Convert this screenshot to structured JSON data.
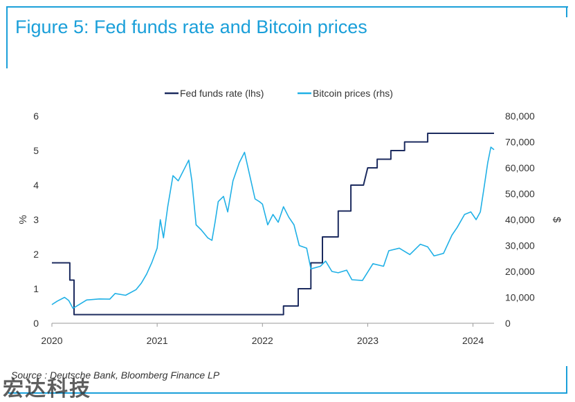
{
  "title": "Figure 5: Fed funds rate and Bitcoin prices",
  "source": "Source : Deutsche Bank, Bloomberg Finance LP",
  "watermark": "宏达科技",
  "colors": {
    "fed": "#1b2a5e",
    "btc": "#1fb0e6",
    "accent": "#1a9fd9"
  },
  "chart_data": {
    "type": "line",
    "legend": {
      "position": "top"
    },
    "x_ticks": [
      "2020",
      "2021",
      "2022",
      "2023",
      "2024"
    ],
    "xlim": [
      2020.0,
      2024.2
    ],
    "ylabel_left": "%",
    "ylabel_right": "$",
    "ylim_left": [
      0,
      6
    ],
    "yticks_left": [
      "0",
      "1",
      "2",
      "3",
      "4",
      "5",
      "6"
    ],
    "ylim_right": [
      0,
      80000
    ],
    "yticks_right": [
      "0",
      "10,000",
      "20,000",
      "30,000",
      "40,000",
      "50,000",
      "60,000",
      "70,000",
      "80,000"
    ],
    "grid": false,
    "series": [
      {
        "name": "Fed funds rate (lhs)",
        "axis": "left",
        "step": true,
        "points": [
          [
            2020.0,
            1.75
          ],
          [
            2020.17,
            1.75
          ],
          [
            2020.17,
            1.25
          ],
          [
            2020.21,
            1.25
          ],
          [
            2020.21,
            0.25
          ],
          [
            2022.2,
            0.25
          ],
          [
            2022.2,
            0.5
          ],
          [
            2022.34,
            0.5
          ],
          [
            2022.34,
            1.0
          ],
          [
            2022.46,
            1.0
          ],
          [
            2022.46,
            1.75
          ],
          [
            2022.57,
            1.75
          ],
          [
            2022.57,
            2.5
          ],
          [
            2022.72,
            2.5
          ],
          [
            2022.72,
            3.25
          ],
          [
            2022.84,
            3.25
          ],
          [
            2022.84,
            4.0
          ],
          [
            2022.96,
            4.0
          ],
          [
            2023.0,
            4.5
          ],
          [
            2023.09,
            4.5
          ],
          [
            2023.09,
            4.75
          ],
          [
            2023.22,
            4.75
          ],
          [
            2023.22,
            5.0
          ],
          [
            2023.35,
            5.0
          ],
          [
            2023.35,
            5.25
          ],
          [
            2023.57,
            5.25
          ],
          [
            2023.57,
            5.5
          ],
          [
            2024.2,
            5.5
          ]
        ]
      },
      {
        "name": "Bitcoin prices (rhs)",
        "axis": "right",
        "step": false,
        "points": [
          [
            2020.0,
            7200
          ],
          [
            2020.05,
            8500
          ],
          [
            2020.12,
            10000
          ],
          [
            2020.16,
            8800
          ],
          [
            2020.2,
            5800
          ],
          [
            2020.25,
            7000
          ],
          [
            2020.33,
            9000
          ],
          [
            2020.45,
            9400
          ],
          [
            2020.55,
            9300
          ],
          [
            2020.6,
            11500
          ],
          [
            2020.7,
            10800
          ],
          [
            2020.8,
            13000
          ],
          [
            2020.85,
            15500
          ],
          [
            2020.9,
            19000
          ],
          [
            2020.95,
            23500
          ],
          [
            2021.0,
            29000
          ],
          [
            2021.03,
            40000
          ],
          [
            2021.06,
            33000
          ],
          [
            2021.1,
            45000
          ],
          [
            2021.15,
            57000
          ],
          [
            2021.2,
            55000
          ],
          [
            2021.25,
            59000
          ],
          [
            2021.3,
            63000
          ],
          [
            2021.33,
            55000
          ],
          [
            2021.37,
            38000
          ],
          [
            2021.42,
            36000
          ],
          [
            2021.48,
            33000
          ],
          [
            2021.52,
            32000
          ],
          [
            2021.55,
            39000
          ],
          [
            2021.58,
            47000
          ],
          [
            2021.63,
            49000
          ],
          [
            2021.67,
            43000
          ],
          [
            2021.72,
            55000
          ],
          [
            2021.78,
            62000
          ],
          [
            2021.83,
            66000
          ],
          [
            2021.88,
            57000
          ],
          [
            2021.93,
            48000
          ],
          [
            2021.97,
            47000
          ],
          [
            2022.0,
            46000
          ],
          [
            2022.05,
            38000
          ],
          [
            2022.1,
            42000
          ],
          [
            2022.15,
            39000
          ],
          [
            2022.2,
            45000
          ],
          [
            2022.25,
            41000
          ],
          [
            2022.3,
            38000
          ],
          [
            2022.35,
            30000
          ],
          [
            2022.42,
            29000
          ],
          [
            2022.46,
            21000
          ],
          [
            2022.55,
            22000
          ],
          [
            2022.6,
            24000
          ],
          [
            2022.66,
            20000
          ],
          [
            2022.72,
            19500
          ],
          [
            2022.8,
            20500
          ],
          [
            2022.85,
            16800
          ],
          [
            2022.95,
            16500
          ],
          [
            2023.05,
            23000
          ],
          [
            2023.15,
            22000
          ],
          [
            2023.2,
            28000
          ],
          [
            2023.3,
            29000
          ],
          [
            2023.4,
            26500
          ],
          [
            2023.5,
            30500
          ],
          [
            2023.57,
            29500
          ],
          [
            2023.63,
            26000
          ],
          [
            2023.72,
            27000
          ],
          [
            2023.8,
            34000
          ],
          [
            2023.85,
            37000
          ],
          [
            2023.92,
            42000
          ],
          [
            2023.98,
            43000
          ],
          [
            2024.03,
            40000
          ],
          [
            2024.07,
            43000
          ],
          [
            2024.1,
            51000
          ],
          [
            2024.14,
            62000
          ],
          [
            2024.17,
            68000
          ],
          [
            2024.2,
            67000
          ]
        ]
      }
    ]
  }
}
